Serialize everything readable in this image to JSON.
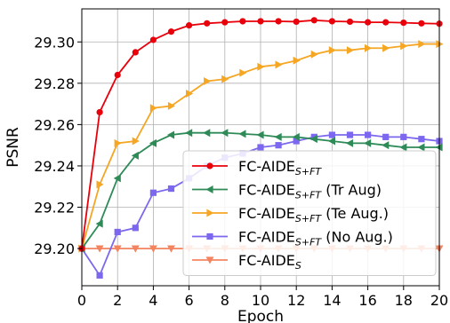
{
  "chart_data": {
    "type": "line",
    "xlabel": "Epoch",
    "ylabel": "PSNR",
    "xlim": [
      0,
      20
    ],
    "ylim": [
      29.182,
      29.316
    ],
    "xticks": [
      0,
      2,
      4,
      6,
      8,
      10,
      12,
      14,
      16,
      18,
      20
    ],
    "yticks": [
      29.2,
      29.22,
      29.24,
      29.26,
      29.28,
      29.3
    ],
    "ytick_labels": [
      "29.20",
      "29.22",
      "29.24",
      "29.26",
      "29.28",
      "29.30"
    ],
    "grid": true,
    "legend_position": "lower-right",
    "x": [
      0,
      1,
      2,
      3,
      4,
      5,
      6,
      7,
      8,
      9,
      10,
      11,
      12,
      13,
      14,
      15,
      16,
      17,
      18,
      19,
      20
    ],
    "series": [
      {
        "name": "FC-AIDE",
        "subscript": "S+FT",
        "suffix": "",
        "color": "#e8000b",
        "marker": "circle",
        "values": [
          29.2,
          29.266,
          29.284,
          29.295,
          29.301,
          29.305,
          29.308,
          29.309,
          29.3095,
          29.31,
          29.31,
          29.31,
          29.3098,
          29.3105,
          29.31,
          29.3098,
          29.3095,
          29.3095,
          29.3093,
          29.309,
          29.3088
        ]
      },
      {
        "name": "FC-AIDE",
        "subscript": "S+FT",
        "suffix": " (Tr Aug)",
        "color": "#2e8b57",
        "marker": "triangle-left",
        "values": [
          29.2,
          29.212,
          29.234,
          29.245,
          29.251,
          29.255,
          29.256,
          29.256,
          29.256,
          29.2555,
          29.255,
          29.254,
          29.254,
          29.253,
          29.252,
          29.251,
          29.251,
          29.25,
          29.249,
          29.249,
          29.249
        ]
      },
      {
        "name": "FC-AIDE",
        "subscript": "S+FT",
        "suffix": " (Te Aug.)",
        "color": "#f5a623",
        "marker": "triangle-right",
        "values": [
          29.2,
          29.231,
          29.251,
          29.252,
          29.268,
          29.269,
          29.275,
          29.281,
          29.282,
          29.285,
          29.288,
          29.289,
          29.291,
          29.294,
          29.296,
          29.296,
          29.297,
          29.297,
          29.298,
          29.299,
          29.299
        ]
      },
      {
        "name": "FC-AIDE",
        "subscript": "S+FT",
        "suffix": " (No Aug.)",
        "color": "#7b68ee",
        "marker": "square",
        "values": [
          29.2,
          29.187,
          29.208,
          29.21,
          29.227,
          29.229,
          29.234,
          29.24,
          29.244,
          29.246,
          29.249,
          29.25,
          29.252,
          29.254,
          29.255,
          29.255,
          29.255,
          29.254,
          29.254,
          29.253,
          29.252
        ]
      },
      {
        "name": "FC-AIDE",
        "subscript": "S",
        "suffix": "",
        "color": "#f4845f",
        "marker": "triangle-down",
        "values": [
          29.2,
          29.2,
          29.2,
          29.2,
          29.2,
          29.2,
          29.2,
          29.2,
          29.2,
          29.2,
          29.2,
          29.2,
          29.2,
          29.2,
          29.2,
          29.2,
          29.2,
          29.2,
          29.2,
          29.2,
          29.2
        ]
      }
    ]
  }
}
